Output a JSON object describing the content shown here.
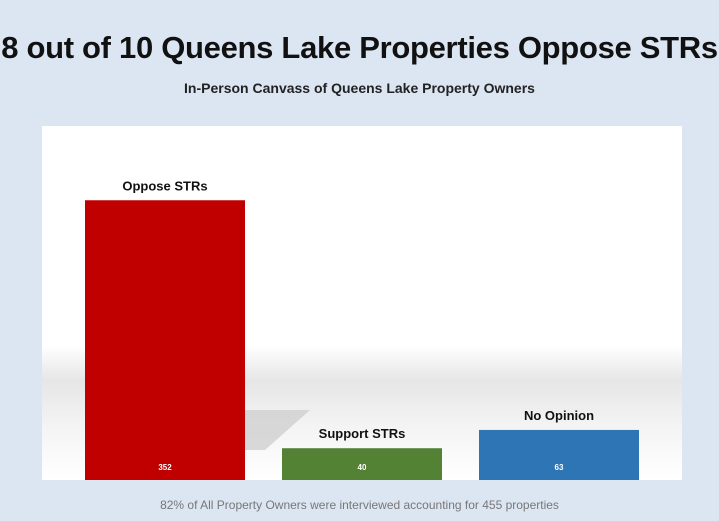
{
  "chart_data": {
    "type": "bar",
    "title": "8 out of 10 Queens Lake Properties Oppose STRs",
    "subtitle": "In-Person Canvass of Queens Lake Property Owners",
    "categories": [
      "Oppose STRs",
      "Support STRs",
      "No Opinion"
    ],
    "values": [
      352,
      40,
      63
    ],
    "colors": [
      "#c00000",
      "#548235",
      "#2e75b6"
    ],
    "ylim": [
      0,
      380
    ],
    "grid": false,
    "legend": "none",
    "footnote": "82% of All Property Owners were interviewed accounting for 455 properties"
  }
}
